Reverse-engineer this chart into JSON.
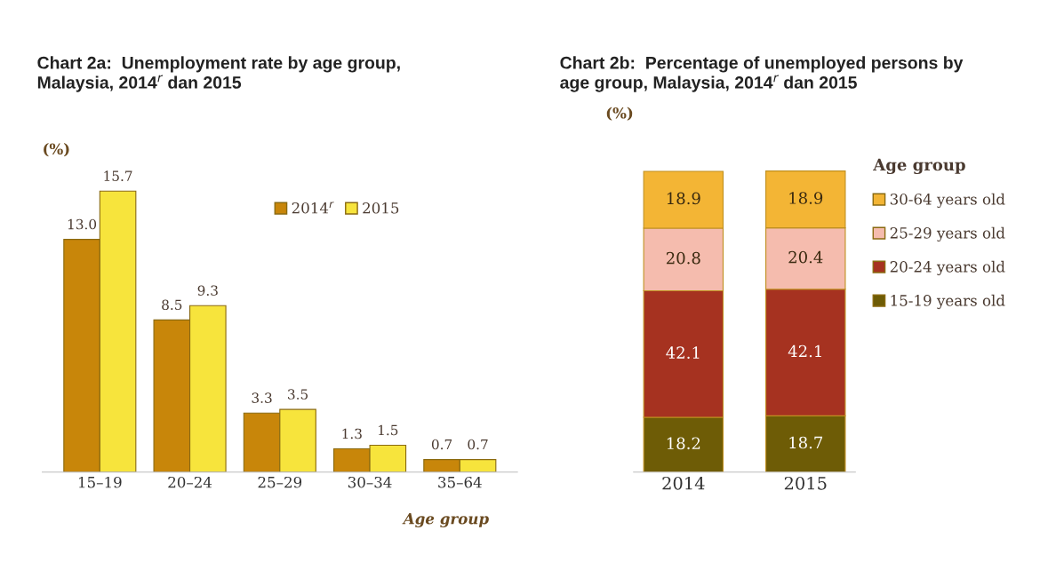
{
  "chart_data": [
    {
      "type": "bar",
      "title": "Chart 2a:  Unemployment rate by age group,\nMalaysia, 2014$^{r}$ dan 2015",
      "ylabel": "(%)",
      "xlabel": "Age group",
      "categories": [
        "15–19",
        "20–24",
        "25–29",
        "30–34",
        "35–64"
      ],
      "series": [
        {
          "name": "2014$^{r}$",
          "color": "#c8860a",
          "values": [
            13.0,
            8.5,
            3.3,
            1.3,
            0.7
          ],
          "value_labels": [
            "13.0",
            "8.5",
            "3.3",
            "1.3",
            "0.7"
          ]
        },
        {
          "name": "2015",
          "color": "#f7e43c",
          "values": [
            15.7,
            9.3,
            3.5,
            1.5,
            0.7
          ],
          "value_labels": [
            "15.7",
            "9.3",
            "3.5",
            "1.5",
            "0.7"
          ]
        }
      ],
      "legend": "top right",
      "grid": false
    },
    {
      "type": "bar",
      "title": "Chart 2b:  Percentage of unemployed persons by\nage group, Malaysia, 2014$^{r}$ dan 2015",
      "ylabel": "(%)",
      "legend_title": "Age group",
      "categories": [
        "2014",
        "2015"
      ],
      "stacked": true,
      "series": [
        {
          "name": "15-19 years old",
          "color": "#6e5c06",
          "values": [
            18.2,
            18.7
          ],
          "value_labels": [
            "18.2",
            "18.7"
          ]
        },
        {
          "name": "20-24 years old",
          "color": "#a63220",
          "values": [
            42.1,
            42.1
          ],
          "value_labels": [
            "42.1",
            "42.1"
          ]
        },
        {
          "name": "25-29 years old",
          "color": "#f5bcae",
          "values": [
            20.8,
            20.4
          ],
          "value_labels": [
            "20.8",
            "20.4"
          ]
        },
        {
          "name": "30-64 years old",
          "color": "#f3b535",
          "values": [
            18.9,
            18.9
          ],
          "value_labels": [
            "18.9",
            "18.9"
          ]
        }
      ],
      "legend": "right",
      "grid": false
    }
  ]
}
